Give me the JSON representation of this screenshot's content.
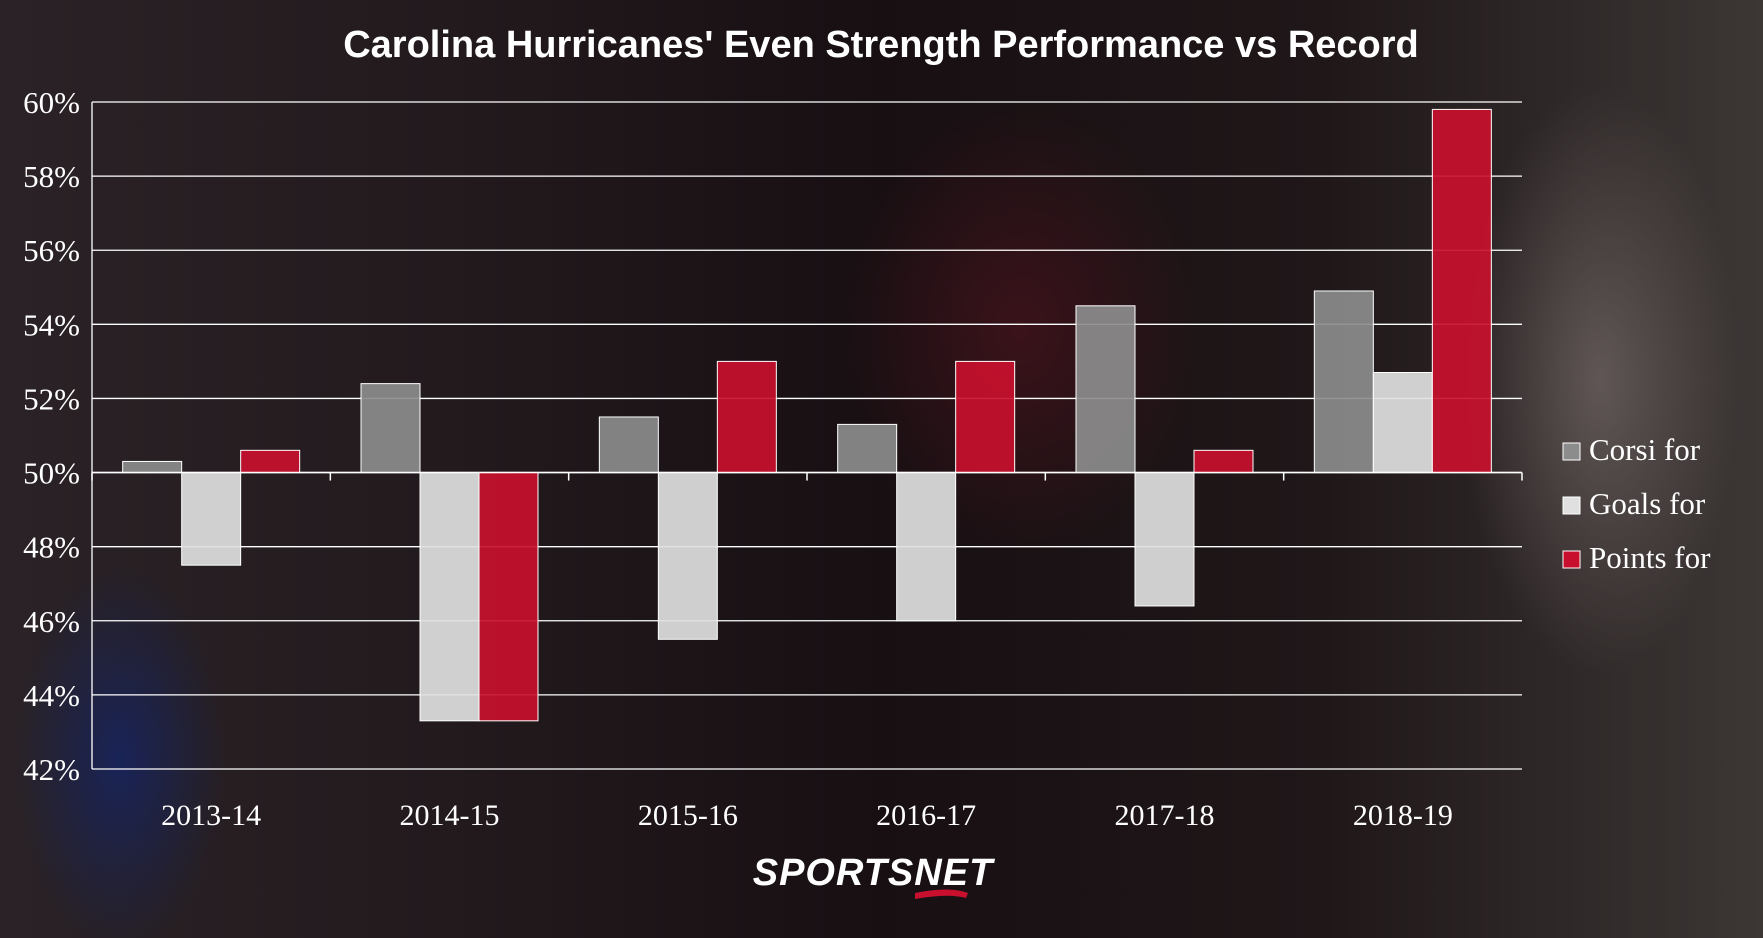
{
  "chart_data": {
    "type": "bar",
    "title": "Carolina Hurricanes' Even Strength Performance vs Record",
    "categories": [
      "2013-14",
      "2014-15",
      "2015-16",
      "2016-17",
      "2017-18",
      "2018-19"
    ],
    "baseline": 50,
    "ylim": [
      42,
      60
    ],
    "yticks": [
      42,
      44,
      46,
      48,
      50,
      52,
      54,
      56,
      58,
      60
    ],
    "ytick_labels": [
      "42%",
      "44%",
      "46%",
      "48%",
      "50%",
      "52%",
      "54%",
      "56%",
      "58%",
      "60%"
    ],
    "grid": true,
    "legend_position": "right",
    "series": [
      {
        "name": "Corsi for",
        "color": "#8c8c8c",
        "values": [
          50.3,
          52.4,
          51.5,
          51.3,
          54.5,
          54.9
        ]
      },
      {
        "name": "Goals for",
        "color": "#e0e0e0",
        "values": [
          47.5,
          43.3,
          45.5,
          46.0,
          46.4,
          52.7
        ]
      },
      {
        "name": "Points for",
        "color": "#c8102e",
        "values": [
          50.6,
          43.3,
          53.0,
          53.0,
          50.6,
          59.8
        ]
      }
    ]
  },
  "branding": {
    "logo_text": "SPORTSNET",
    "logo_accent": "#c8102e"
  }
}
